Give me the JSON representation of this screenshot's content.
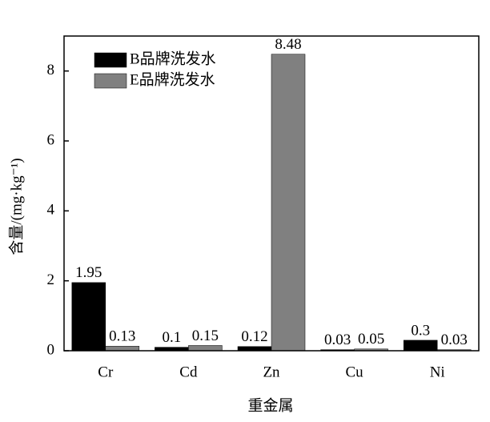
{
  "chart_data": {
    "type": "bar",
    "x_label": "重金属",
    "y_label": "含量/(mg·kg⁻¹)",
    "categories": [
      "Cr",
      "Cd",
      "Zn",
      "Cu",
      "Ni"
    ],
    "series": [
      {
        "name": "B品牌洗发水",
        "color": "#000000",
        "values": [
          1.95,
          0.1,
          0.12,
          0.03,
          0.3
        ]
      },
      {
        "name": "E品牌洗发水",
        "color": "#808080",
        "values": [
          0.13,
          0.15,
          8.48,
          0.05,
          0.03
        ]
      }
    ],
    "ylim": [
      0,
      9
    ],
    "yticks": [
      0,
      2,
      4,
      6,
      8
    ],
    "legend": "upper left"
  }
}
